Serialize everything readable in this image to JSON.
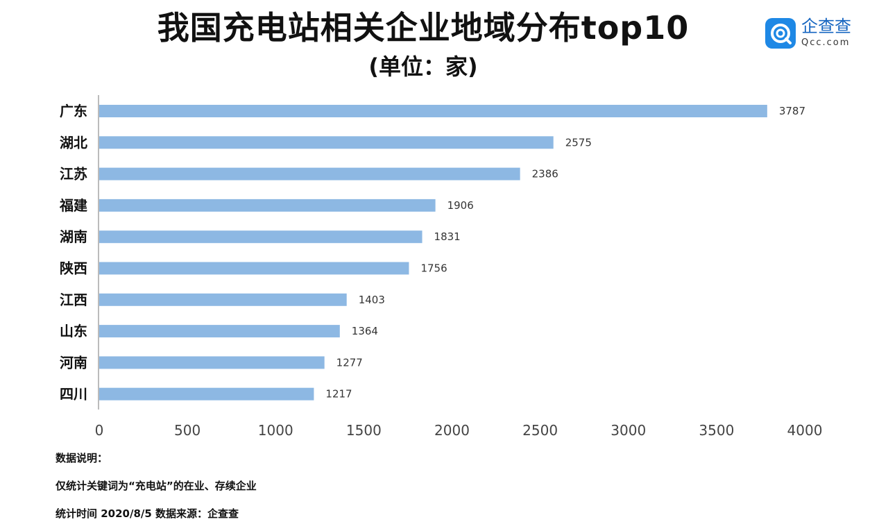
{
  "header": {
    "title": "我国充电站相关企业地域分布top10",
    "subtitle": "(单位：家)"
  },
  "logo": {
    "icon": "qcc-logo-icon",
    "brand": "企查查",
    "domain": "Qcc.com",
    "color": "#1e88e5"
  },
  "chart_data": {
    "type": "bar",
    "orientation": "horizontal",
    "categories": [
      "广东",
      "湖北",
      "江苏",
      "福建",
      "湖南",
      "陕西",
      "江西",
      "山东",
      "河南",
      "四川"
    ],
    "values": [
      3787,
      2575,
      2386,
      1906,
      1831,
      1756,
      1403,
      1364,
      1277,
      1217
    ],
    "title": "我国充电站相关企业地域分布top10",
    "subtitle": "(单位：家)",
    "xlabel": "",
    "ylabel": "",
    "xlim": [
      0,
      4000
    ],
    "xticks": [
      0,
      500,
      1000,
      1500,
      2000,
      2500,
      3000,
      3500,
      4000
    ],
    "grid": false,
    "bar_color": "#8db8e3",
    "data_labels": true
  },
  "notes": {
    "heading": "数据说明：",
    "line1": "仅统计关键词为“充电站”的在业、存续企业",
    "line2": "统计时间 2020/8/5    数据来源：企查查"
  }
}
